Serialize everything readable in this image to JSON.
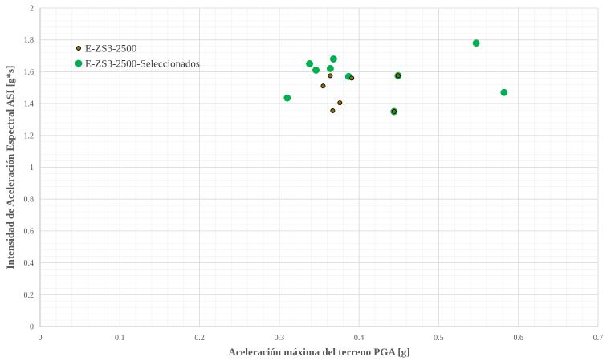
{
  "chart_data": {
    "type": "scatter",
    "title": "",
    "xlabel": "Aceleración máxima del terreno PGA [g]",
    "ylabel": "Intensidad de Aceleración Espectral ASI [g*s]",
    "xlim": [
      0,
      0.7
    ],
    "ylim": [
      0,
      2
    ],
    "x_ticks": [
      "0",
      "0.1",
      "0.2",
      "0.3",
      "0.4",
      "0.5",
      "0.6",
      "0.7"
    ],
    "y_ticks": [
      "0",
      "0.2",
      "0.4",
      "0.6",
      "0.8",
      "1",
      "1.2",
      "1.4",
      "1.6",
      "1.8",
      "2"
    ],
    "grid": true,
    "legend_position": "top-left",
    "series": [
      {
        "name": "E-ZS3-2500",
        "color": "#8B6914",
        "edge_color": "#000000",
        "marker": "small-circle",
        "points": [
          [
            0.355,
            1.51
          ],
          [
            0.364,
            1.575
          ],
          [
            0.367,
            1.355
          ],
          [
            0.376,
            1.405
          ],
          [
            0.391,
            1.56
          ],
          [
            0.444,
            1.35
          ],
          [
            0.449,
            1.575
          ]
        ]
      },
      {
        "name": "E-ZS3-2500-Seleccionados",
        "color": "#00B050",
        "edge_color": "#00B050",
        "marker": "large-circle",
        "points": [
          [
            0.31,
            1.435
          ],
          [
            0.338,
            1.65
          ],
          [
            0.346,
            1.61
          ],
          [
            0.364,
            1.62
          ],
          [
            0.368,
            1.68
          ],
          [
            0.387,
            1.57
          ],
          [
            0.444,
            1.35
          ],
          [
            0.449,
            1.575
          ],
          [
            0.547,
            1.78
          ],
          [
            0.582,
            1.47
          ]
        ]
      }
    ]
  }
}
